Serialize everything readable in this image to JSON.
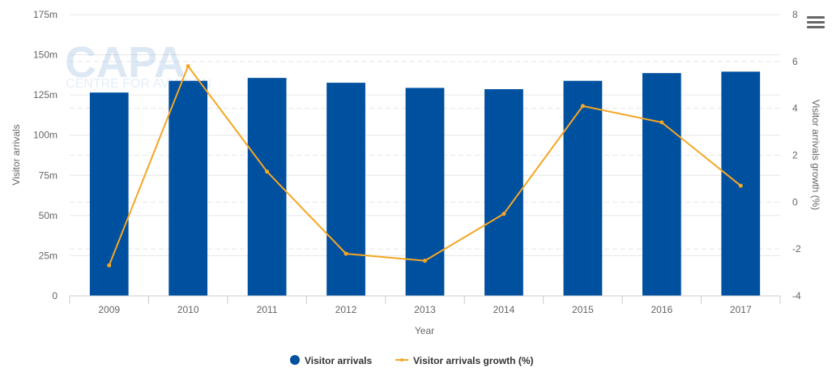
{
  "watermark": {
    "brand": "CAPA",
    "tagline": "CENTRE FOR AVIATION"
  },
  "menu_icon": "hamburger-menu-icon",
  "chart_data": {
    "type": "bar+line",
    "categories": [
      "2009",
      "2010",
      "2011",
      "2012",
      "2013",
      "2014",
      "2015",
      "2016",
      "2017"
    ],
    "xlabel": "Year",
    "ylabel_left": "Visitor arrivals",
    "ylabel_right": "Visitor arrivals growth (%)",
    "y_left": {
      "min": 0,
      "max": 175,
      "ticks": [
        0,
        25,
        50,
        75,
        100,
        125,
        150,
        175
      ],
      "tick_labels": [
        "0",
        "25m",
        "50m",
        "75m",
        "100m",
        "125m",
        "150m",
        "175m"
      ]
    },
    "y_right": {
      "min": -4,
      "max": 8,
      "ticks": [
        -4,
        -2,
        0,
        2,
        4,
        6,
        8
      ],
      "tick_labels": [
        "-4",
        "-2",
        "0",
        "2",
        "4",
        "6",
        "8"
      ]
    },
    "grid": true,
    "legend_position": "bottom-center",
    "series": [
      {
        "name": "Visitor arrivals",
        "type": "bar",
        "axis": "left",
        "unit": "m",
        "color": "#0050a0",
        "values": [
          126.5,
          133.8,
          135.6,
          132.6,
          129.4,
          128.6,
          133.8,
          138.6,
          139.5
        ]
      },
      {
        "name": "Visitor arrivals growth (%)",
        "type": "line",
        "axis": "right",
        "color": "#f5a623",
        "values": [
          -2.7,
          5.8,
          1.3,
          -2.2,
          -2.5,
          -0.5,
          4.1,
          3.4,
          0.7
        ]
      }
    ]
  }
}
